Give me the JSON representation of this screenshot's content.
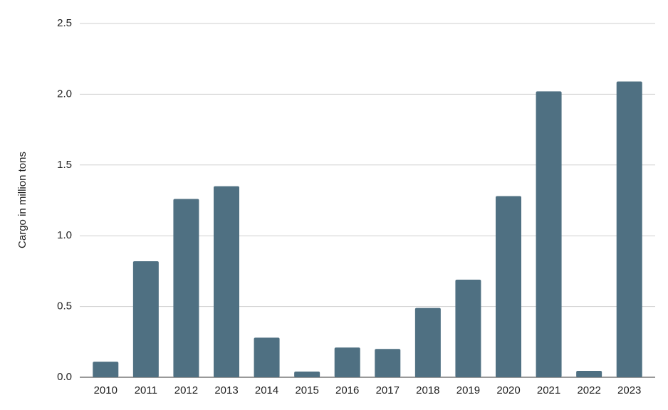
{
  "chart_data": {
    "type": "bar",
    "y_label": "Cargo in million tons",
    "categories": [
      "2010",
      "2011",
      "2012",
      "2013",
      "2014",
      "2015",
      "2016",
      "2017",
      "2018",
      "2019",
      "2020",
      "2021",
      "2022",
      "2023"
    ],
    "values": [
      0.11,
      0.82,
      1.26,
      1.35,
      0.28,
      0.04,
      0.21,
      0.2,
      0.49,
      0.69,
      1.28,
      2.02,
      0.045,
      2.09
    ],
    "color": "#4f7082",
    "ylim": [
      0,
      2.5
    ],
    "yticks": [
      {
        "value": 0,
        "label": "0.0"
      },
      0.5,
      {
        "value": 1,
        "label": "1.0"
      },
      1.5,
      {
        "value": 2,
        "label": "2.0"
      },
      2.5
    ],
    "grid": true
  }
}
